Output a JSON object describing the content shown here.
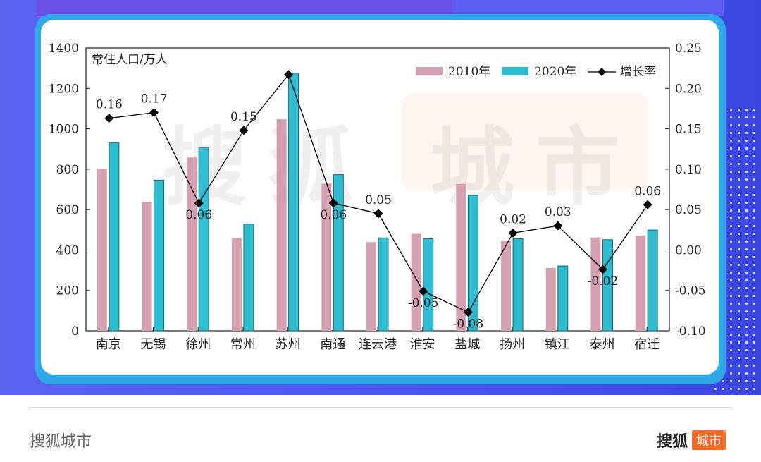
{
  "colors": {
    "bar2010": "#d5a1b1",
    "bar2020": "#2fbcd0",
    "line": "#000000"
  },
  "watermark": {
    "left": "搜狐",
    "right": "城市"
  },
  "footer": {
    "left": "搜狐城市",
    "right_brand": "搜狐",
    "right_badge": "城市"
  },
  "chart_data": {
    "type": "bar",
    "ylabel": "常住人口/万人",
    "categories": [
      "南京",
      "无锡",
      "徐州",
      "常州",
      "苏州",
      "南通",
      "连云港",
      "淮安",
      "盐城",
      "扬州",
      "镇江",
      "泰州",
      "宿迁"
    ],
    "ylim": [
      0,
      1400
    ],
    "yticks": [
      "0",
      "200",
      "400",
      "600",
      "800",
      "1000",
      "1200",
      "1400"
    ],
    "y2lim": [
      -0.1,
      0.25
    ],
    "y2ticks": [
      "-0.10",
      "-0.05",
      "0.00",
      "0.05",
      "0.10",
      "0.15",
      "0.20",
      "0.25"
    ],
    "legend_position": "top-right",
    "series": [
      {
        "name": "2010年",
        "type": "bar",
        "values": [
          800,
          637,
          858,
          459,
          1047,
          728,
          439,
          480,
          727,
          446,
          311,
          462,
          472
        ]
      },
      {
        "name": "2020年",
        "type": "bar",
        "values": [
          931,
          746,
          908,
          528,
          1275,
          773,
          460,
          456,
          671,
          456,
          321,
          451,
          499
        ]
      },
      {
        "name": "增长率",
        "type": "line",
        "axis": "right",
        "values": [
          0.163,
          0.17,
          0.058,
          0.148,
          0.217,
          0.058,
          0.045,
          -0.051,
          -0.077,
          0.021,
          0.03,
          -0.024,
          0.056
        ],
        "labels": [
          "0.16",
          "0.17",
          "0.06",
          "0.15",
          "",
          "0.06",
          "0.05",
          "-0.05",
          "-0.08",
          "0.02",
          "0.03",
          "-0.02",
          "0.06"
        ]
      }
    ]
  }
}
